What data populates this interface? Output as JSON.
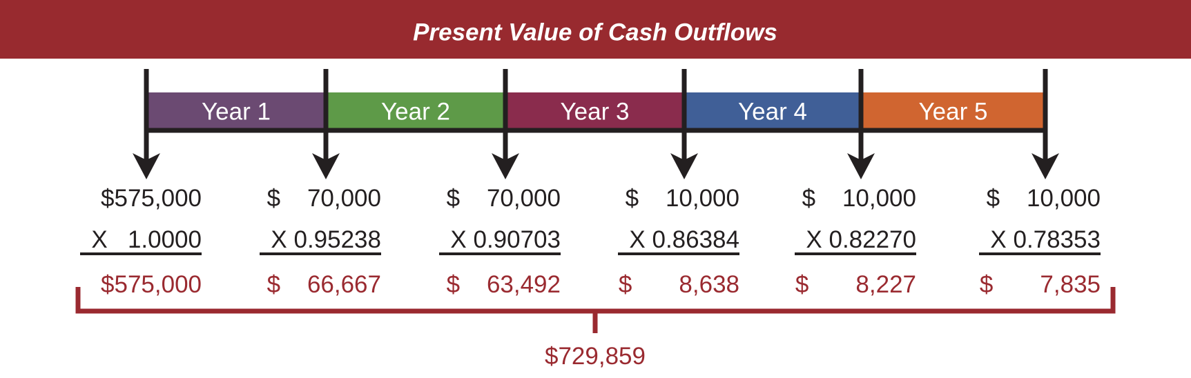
{
  "title": "Present Value of Cash Outflows",
  "years": [
    {
      "label": "Year 1",
      "color": "#6b4a72"
    },
    {
      "label": "Year 2",
      "color": "#5e9a48"
    },
    {
      "label": "Year 3",
      "color": "#8a2c4d"
    },
    {
      "label": "Year 4",
      "color": "#405f97"
    },
    {
      "label": "Year 5",
      "color": "#d06530"
    }
  ],
  "columns": [
    {
      "amount": "$575,000",
      "factor": "X   1.0000",
      "present_value": "$575,000"
    },
    {
      "amount": "$    70,000",
      "factor": "X 0.95238",
      "present_value": "$    66,667"
    },
    {
      "amount": "$    70,000",
      "factor": "X 0.90703",
      "present_value": "$    63,492"
    },
    {
      "amount": "$    10,000",
      "factor": "X 0.86384",
      "present_value": "$       8,638"
    },
    {
      "amount": "$    10,000",
      "factor": "X 0.82270",
      "present_value": "$       8,227"
    },
    {
      "amount": "$    10,000",
      "factor": "X 0.78353",
      "present_value": "$       7,835"
    }
  ],
  "total": "$729,859"
}
